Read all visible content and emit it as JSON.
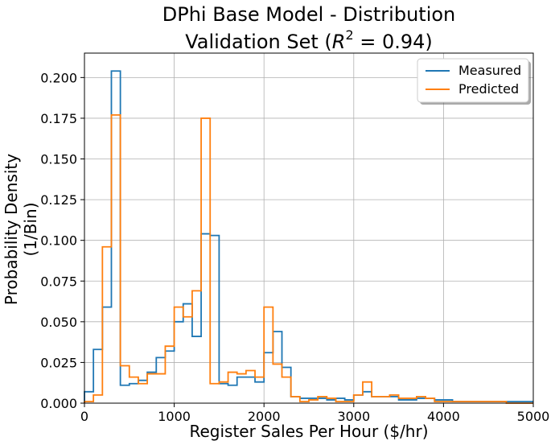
{
  "chart_data": {
    "type": "histogram",
    "title_line1": "DPhi Base Model - Distribution",
    "title_line2_prefix": "Validation Set (",
    "title_line2_symbol": "R",
    "title_line2_exponent": "2",
    "title_line2_suffix": " = 0.94)",
    "xlabel": "Register Sales Per Hour ($/hr)",
    "ylabel_line1": "Probability Density",
    "ylabel_line2": "(1/Bin)",
    "xlim": [
      0,
      5000
    ],
    "ylim": [
      0,
      0.215
    ],
    "grid": true,
    "legend_position": "top-right",
    "x_ticks": [
      0,
      1000,
      2000,
      3000,
      4000,
      5000
    ],
    "x_tick_labels": [
      "0",
      "1000",
      "2000",
      "3000",
      "4000",
      "5000"
    ],
    "y_ticks": [
      0,
      0.025,
      0.05,
      0.075,
      0.1,
      0.125,
      0.15,
      0.175,
      0.2
    ],
    "y_tick_labels": [
      "0.000",
      "0.025",
      "0.050",
      "0.075",
      "0.100",
      "0.125",
      "0.150",
      "0.175",
      "0.200"
    ],
    "bin_width": 100,
    "bin_edges_start": 0,
    "series": [
      {
        "name": "Measured",
        "color": "#1f77b4",
        "values": [
          0.007,
          0.033,
          0.059,
          0.204,
          0.011,
          0.012,
          0.014,
          0.019,
          0.028,
          0.032,
          0.05,
          0.061,
          0.041,
          0.104,
          0.103,
          0.012,
          0.011,
          0.016,
          0.016,
          0.013,
          0.031,
          0.044,
          0.022,
          0.004,
          0.003,
          0.003,
          0.003,
          0.002,
          0.003,
          0.002,
          0.005,
          0.007,
          0.004,
          0.004,
          0.004,
          0.002,
          0.002,
          0.003,
          0.003,
          0.002,
          0.002,
          0.001,
          0.001,
          0.001,
          0.001,
          0.001,
          0.001,
          0.001,
          0.001,
          0.001
        ]
      },
      {
        "name": "Predicted",
        "color": "#ff7f0e",
        "values": [
          0.001,
          0.005,
          0.096,
          0.177,
          0.023,
          0.016,
          0.012,
          0.018,
          0.018,
          0.035,
          0.059,
          0.053,
          0.069,
          0.175,
          0.012,
          0.013,
          0.019,
          0.018,
          0.02,
          0.016,
          0.059,
          0.024,
          0.016,
          0.004,
          0.001,
          0.002,
          0.004,
          0.003,
          0.001,
          0.001,
          0.005,
          0.013,
          0.004,
          0.004,
          0.005,
          0.003,
          0.003,
          0.004,
          0.003,
          0.001,
          0.001,
          0.001,
          0.001,
          0.001,
          0.001,
          0.001,
          0.001,
          0.0,
          0.0,
          0.0
        ]
      }
    ]
  }
}
